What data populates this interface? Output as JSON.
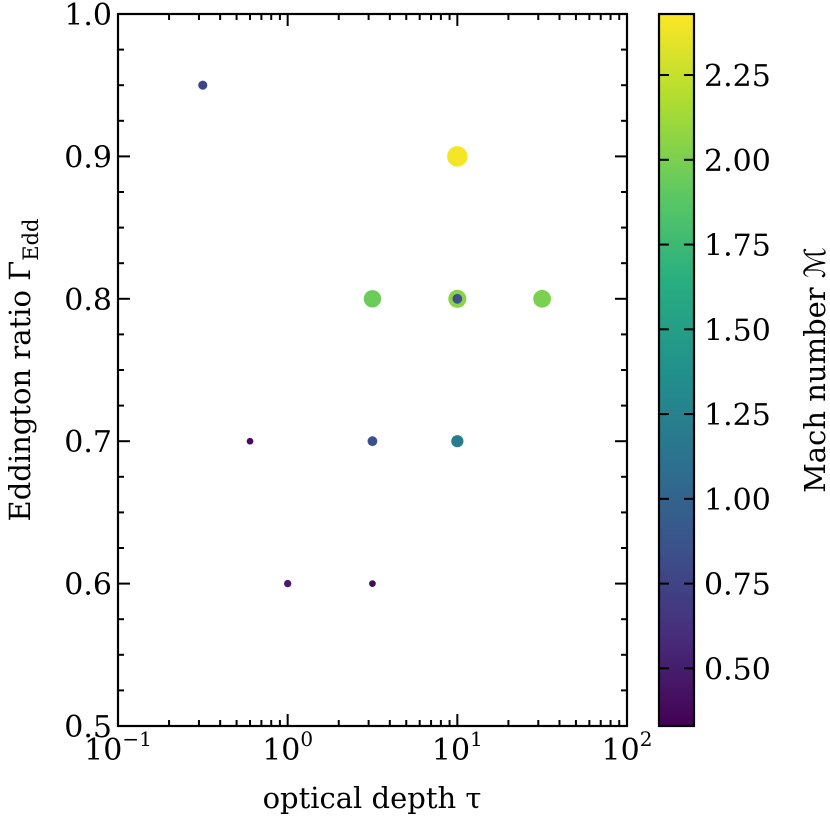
{
  "chart_data": {
    "type": "scatter",
    "xlabel": "optical depth τ",
    "ylabel": "Eddington ratio Γ",
    "ylabel_sub": "Edd",
    "xscale": "log",
    "xlim": [
      0.1,
      100
    ],
    "ylim": [
      0.5,
      1.0
    ],
    "x_ticks": [
      {
        "value": 0.1,
        "base": "10",
        "exp": "−1"
      },
      {
        "value": 1,
        "base": "10",
        "exp": "0"
      },
      {
        "value": 10,
        "base": "10",
        "exp": "1"
      },
      {
        "value": 100,
        "base": "10",
        "exp": "2"
      }
    ],
    "y_ticks": [
      "0.5",
      "0.6",
      "0.7",
      "0.8",
      "0.9",
      "1.0"
    ],
    "colorbar": {
      "label": "Mach number ℳ",
      "colormap": "viridis",
      "range": [
        0.33,
        2.43
      ],
      "ticks": [
        "0.50",
        "0.75",
        "1.00",
        "1.25",
        "1.50",
        "1.75",
        "2.00",
        "2.25"
      ]
    },
    "points": [
      {
        "x": 0.316,
        "y": 0.95,
        "mach": 0.75
      },
      {
        "x": 10,
        "y": 0.9,
        "mach": 2.4
      },
      {
        "x": 3.16,
        "y": 0.8,
        "mach": 1.95
      },
      {
        "x": 10,
        "y": 0.8,
        "mach": 2.05
      },
      {
        "x": 10,
        "y": 0.8,
        "mach": 0.85
      },
      {
        "x": 31.6,
        "y": 0.8,
        "mach": 2.0
      },
      {
        "x": 0.6,
        "y": 0.7,
        "mach": 0.4
      },
      {
        "x": 3.16,
        "y": 0.7,
        "mach": 0.85
      },
      {
        "x": 10,
        "y": 0.7,
        "mach": 1.2
      },
      {
        "x": 1.0,
        "y": 0.6,
        "mach": 0.5
      },
      {
        "x": 3.16,
        "y": 0.6,
        "mach": 0.4
      }
    ]
  }
}
